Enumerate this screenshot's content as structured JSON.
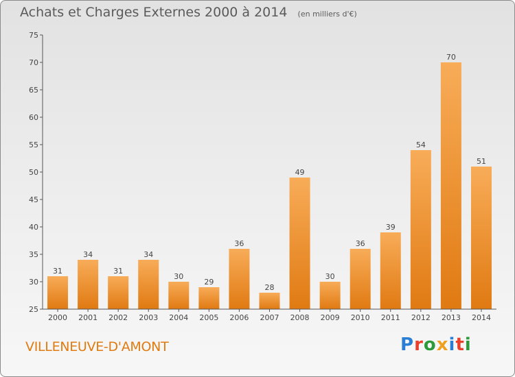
{
  "header": {
    "title": "Achats et Charges Externes 2000 à 2014",
    "unit": "(en milliers d'€)"
  },
  "footer": {
    "place": "VILLENEUVE-D'AMONT",
    "logo": "Proxiti",
    "logo_colors": [
      "#2a7fd4",
      "#e8402a",
      "#2a9a3a",
      "#f0a020",
      "#2a7fd4",
      "#e8402a",
      "#2a9a3a"
    ]
  },
  "colors": {
    "bar_light": "#f8ac58",
    "bar_dark": "#e07a12",
    "axis": "#555555",
    "text": "#444444"
  },
  "chart_data": {
    "type": "bar",
    "title": "Achats et Charges Externes 2000 à 2014",
    "xlabel": "",
    "ylabel": "",
    "categories": [
      "2000",
      "2001",
      "2002",
      "2003",
      "2004",
      "2005",
      "2006",
      "2007",
      "2008",
      "2009",
      "2010",
      "2011",
      "2012",
      "2013",
      "2014"
    ],
    "values": [
      31,
      34,
      31,
      34,
      30,
      29,
      36,
      28,
      49,
      30,
      36,
      39,
      54,
      70,
      51
    ],
    "ylim": [
      25,
      75
    ],
    "yticks": [
      25,
      30,
      35,
      40,
      45,
      50,
      55,
      60,
      65,
      70,
      75
    ],
    "grid": false,
    "legend": "none"
  }
}
